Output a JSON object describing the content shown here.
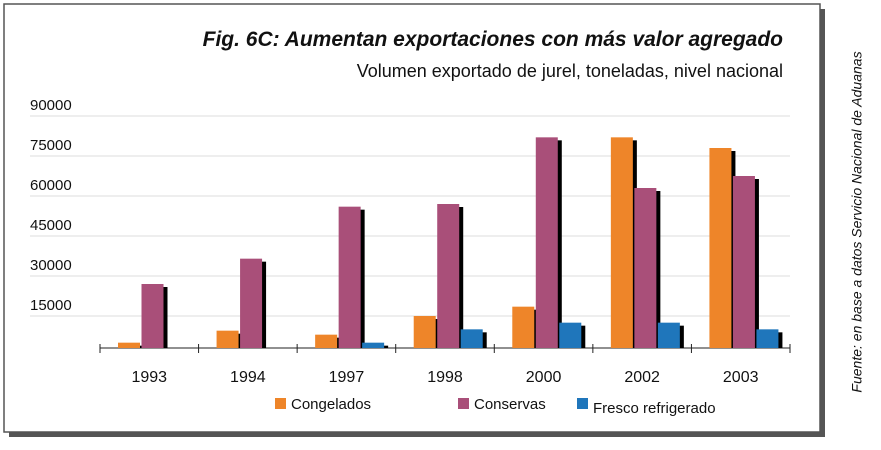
{
  "chart_data": {
    "type": "bar",
    "title": "Fig. 6C: Aumentan exportaciones con más valor agregado",
    "subtitle": "Volumen exportado de jurel, toneladas, nivel nacional",
    "source": "Fuente: en base a datos Servicio Nacional de Aduanas",
    "categories": [
      "1993",
      "1994",
      "1997",
      "1998",
      "2000",
      "2002",
      "2003"
    ],
    "series": [
      {
        "name": "Congelados",
        "color": "#ee8529",
        "values": [
          2000,
          6500,
          5000,
          12000,
          15500,
          79000,
          75000
        ]
      },
      {
        "name": "Conservas",
        "color": "#a94f79",
        "values": [
          24000,
          33500,
          53000,
          54000,
          79000,
          60000,
          64500
        ]
      },
      {
        "name": "Fresco refrigerado",
        "color": "#1f76bb",
        "values": [
          0,
          0,
          2000,
          7000,
          9500,
          9500,
          7000
        ]
      }
    ],
    "ylim": [
      0,
      90000
    ],
    "yticks": [
      15000,
      30000,
      45000,
      60000,
      75000,
      90000
    ],
    "grid": true
  }
}
